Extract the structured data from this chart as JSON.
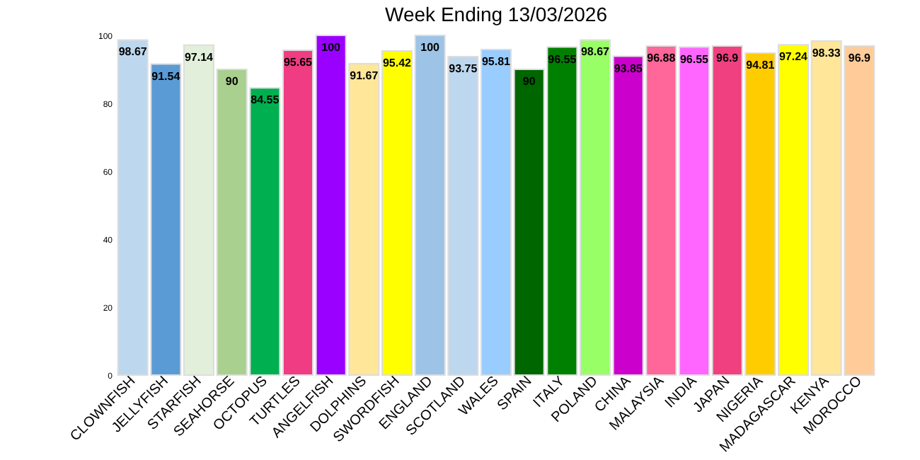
{
  "chart_data": {
    "type": "bar",
    "title": "Week Ending 13/03/2026",
    "categories": [
      "CLOWNFISH",
      "JELLYFISH",
      "STARFISH",
      "SEAHORSE",
      "OCTOPUS",
      "TURTLES",
      "ANGELFISH",
      "DOLPHINS",
      "SWORDFISH",
      "ENGLAND",
      "SCOTLAND",
      "WALES",
      "SPAIN",
      "ITALY",
      "POLAND",
      "CHINA",
      "MALAYSIA",
      "INDIA",
      "JAPAN",
      "NIGERIA",
      "MADAGASCAR",
      "KENYA",
      "MOROCCO"
    ],
    "values": [
      98.67,
      91.54,
      97.14,
      90,
      84.55,
      95.65,
      100,
      91.67,
      95.42,
      100,
      93.75,
      95.81,
      90,
      96.55,
      98.67,
      93.85,
      96.88,
      96.55,
      96.9,
      94.81,
      97.24,
      98.33,
      96.9
    ],
    "colors": [
      "#bdd7ee",
      "#5b9bd5",
      "#e2efda",
      "#a9d08e",
      "#00b050",
      "#f03c82",
      "#9900ff",
      "#ffe699",
      "#ffff00",
      "#9dc3e6",
      "#bdd7ee",
      "#99ccff",
      "#006600",
      "#008000",
      "#99ff66",
      "#cc00cc",
      "#ff6699",
      "#ff66ff",
      "#f0407f",
      "#ffcc00",
      "#ffff00",
      "#ffe699",
      "#ffcc99"
    ],
    "ylim": [
      0,
      100
    ],
    "yticks": [
      0,
      20,
      40,
      60,
      80,
      100
    ],
    "grid": false,
    "data_labels": true
  }
}
